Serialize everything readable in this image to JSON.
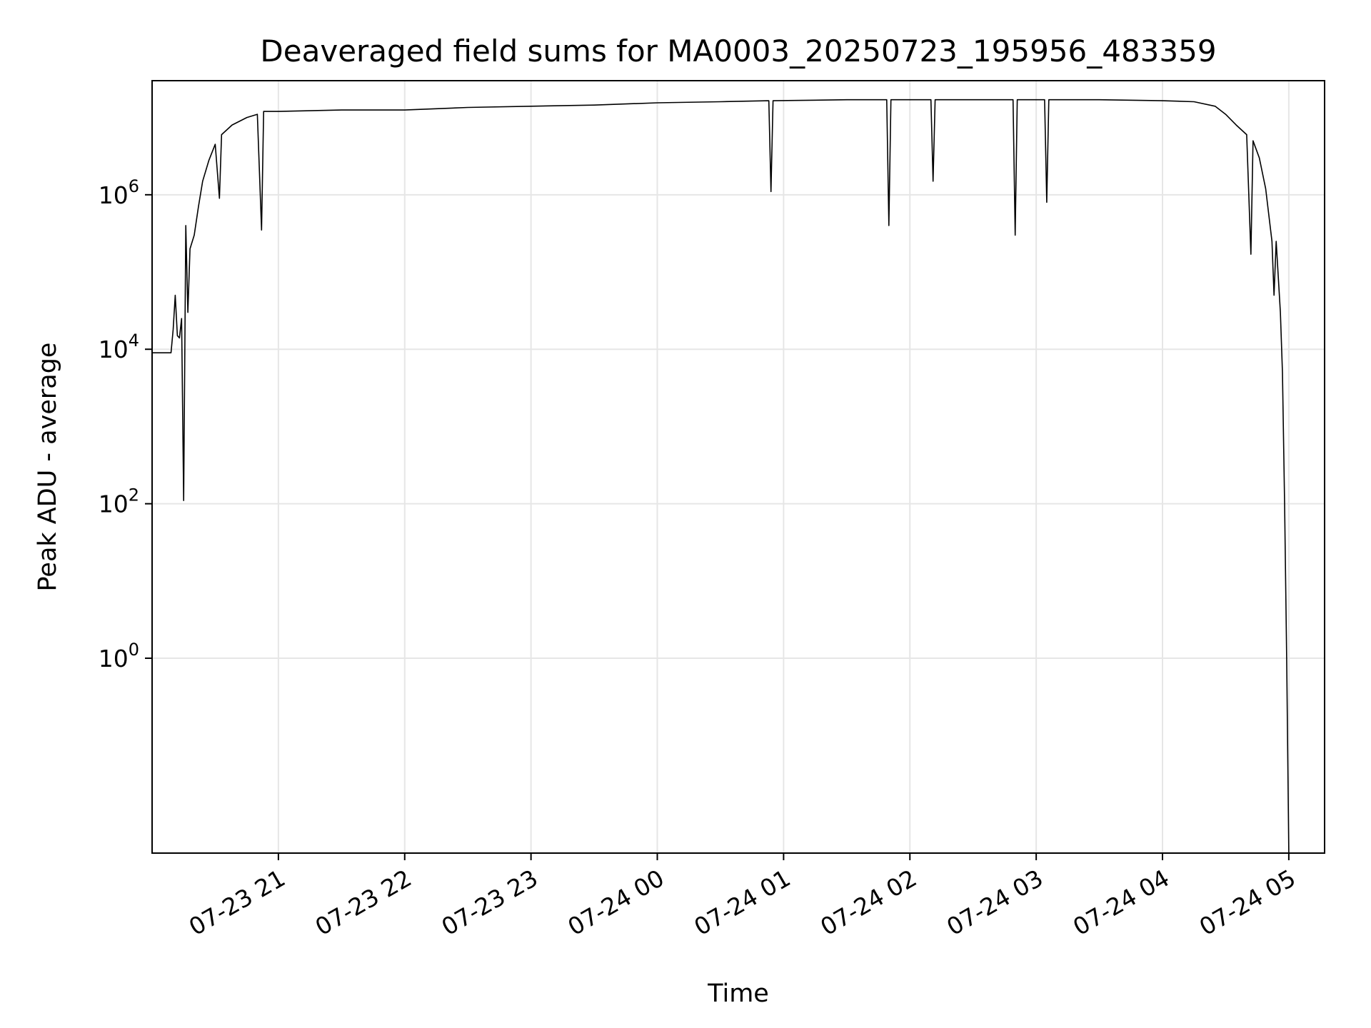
{
  "chart_data": {
    "type": "line",
    "title": "Deaveraged field sums for MA0003_20250723_195956_483359",
    "xlabel": "Time",
    "ylabel": "Peak ADU - average",
    "yscale": "log",
    "grid": true,
    "line_color": "#000000",
    "grid_color": "#e6e6e6",
    "xlim": [
      "2025-07-23 20:00",
      "2025-07-24 05:17"
    ],
    "ylim": [
      0.003,
      30000000
    ],
    "x_ticks": [
      "07-23 21",
      "07-23 22",
      "07-23 23",
      "07-24 00",
      "07-24 01",
      "07-24 02",
      "07-24 03",
      "07-24 04",
      "07-24 05"
    ],
    "y_ticks": [
      {
        "value": 1,
        "base": "10",
        "exp": "0"
      },
      {
        "value": 100,
        "base": "10",
        "exp": "2"
      },
      {
        "value": 10000,
        "base": "10",
        "exp": "4"
      },
      {
        "value": 1000000,
        "base": "10",
        "exp": "6"
      }
    ],
    "series": [
      {
        "points": [
          [
            "2025-07-23 20:00",
            9000
          ],
          [
            "2025-07-23 20:09",
            9000
          ],
          [
            "2025-07-23 20:10",
            18000
          ],
          [
            "2025-07-23 20:11",
            50000
          ],
          [
            "2025-07-23 20:12",
            15000
          ],
          [
            "2025-07-23 20:13",
            14000
          ],
          [
            "2025-07-23 20:14",
            25000
          ],
          [
            "2025-07-23 20:15",
            110
          ],
          [
            "2025-07-23 20:16",
            400000
          ],
          [
            "2025-07-23 20:17",
            30000
          ],
          [
            "2025-07-23 20:18",
            200000
          ],
          [
            "2025-07-23 20:20",
            300000
          ],
          [
            "2025-07-23 20:22",
            700000
          ],
          [
            "2025-07-23 20:24",
            1500000
          ],
          [
            "2025-07-23 20:27",
            2800000
          ],
          [
            "2025-07-23 20:30",
            4500000
          ],
          [
            "2025-07-23 20:32",
            900000
          ],
          [
            "2025-07-23 20:33",
            6000000
          ],
          [
            "2025-07-23 20:38",
            8000000
          ],
          [
            "2025-07-23 20:45",
            10000000
          ],
          [
            "2025-07-23 20:50",
            11000000
          ],
          [
            "2025-07-23 20:52",
            350000
          ],
          [
            "2025-07-23 20:53",
            12000000
          ],
          [
            "2025-07-23 21:00",
            12000000
          ],
          [
            "2025-07-23 21:30",
            12500000
          ],
          [
            "2025-07-23 22:00",
            12500000
          ],
          [
            "2025-07-23 22:30",
            13500000
          ],
          [
            "2025-07-23 23:00",
            14000000
          ],
          [
            "2025-07-23 23:30",
            14500000
          ],
          [
            "2025-07-24 00:00",
            15500000
          ],
          [
            "2025-07-24 00:30",
            16000000
          ],
          [
            "2025-07-24 00:53",
            16500000
          ],
          [
            "2025-07-24 00:54",
            1100000
          ],
          [
            "2025-07-24 00:55",
            16500000
          ],
          [
            "2025-07-24 01:30",
            17000000
          ],
          [
            "2025-07-24 01:49",
            17000000
          ],
          [
            "2025-07-24 01:50",
            400000
          ],
          [
            "2025-07-24 01:51",
            17000000
          ],
          [
            "2025-07-24 02:10",
            17000000
          ],
          [
            "2025-07-24 02:11",
            1500000
          ],
          [
            "2025-07-24 02:12",
            17000000
          ],
          [
            "2025-07-24 02:49",
            17000000
          ],
          [
            "2025-07-24 02:50",
            300000
          ],
          [
            "2025-07-24 02:51",
            17000000
          ],
          [
            "2025-07-24 03:04",
            17000000
          ],
          [
            "2025-07-24 03:05",
            800000
          ],
          [
            "2025-07-24 03:06",
            17000000
          ],
          [
            "2025-07-24 03:30",
            17000000
          ],
          [
            "2025-07-24 04:00",
            16500000
          ],
          [
            "2025-07-24 04:15",
            16000000
          ],
          [
            "2025-07-24 04:25",
            14000000
          ],
          [
            "2025-07-24 04:30",
            11000000
          ],
          [
            "2025-07-24 04:35",
            8000000
          ],
          [
            "2025-07-24 04:40",
            6000000
          ],
          [
            "2025-07-24 04:42",
            170000
          ],
          [
            "2025-07-24 04:43",
            5000000
          ],
          [
            "2025-07-24 04:46",
            3000000
          ],
          [
            "2025-07-24 04:49",
            1200000
          ],
          [
            "2025-07-24 04:52",
            250000
          ],
          [
            "2025-07-24 04:53",
            50000
          ],
          [
            "2025-07-24 04:54",
            250000
          ],
          [
            "2025-07-24 04:56",
            30000
          ],
          [
            "2025-07-24 04:57",
            5000
          ],
          [
            "2025-07-24 04:58",
            100
          ],
          [
            "2025-07-24 04:59",
            1
          ],
          [
            "2025-07-24 05:00",
            0.003
          ]
        ]
      }
    ]
  }
}
